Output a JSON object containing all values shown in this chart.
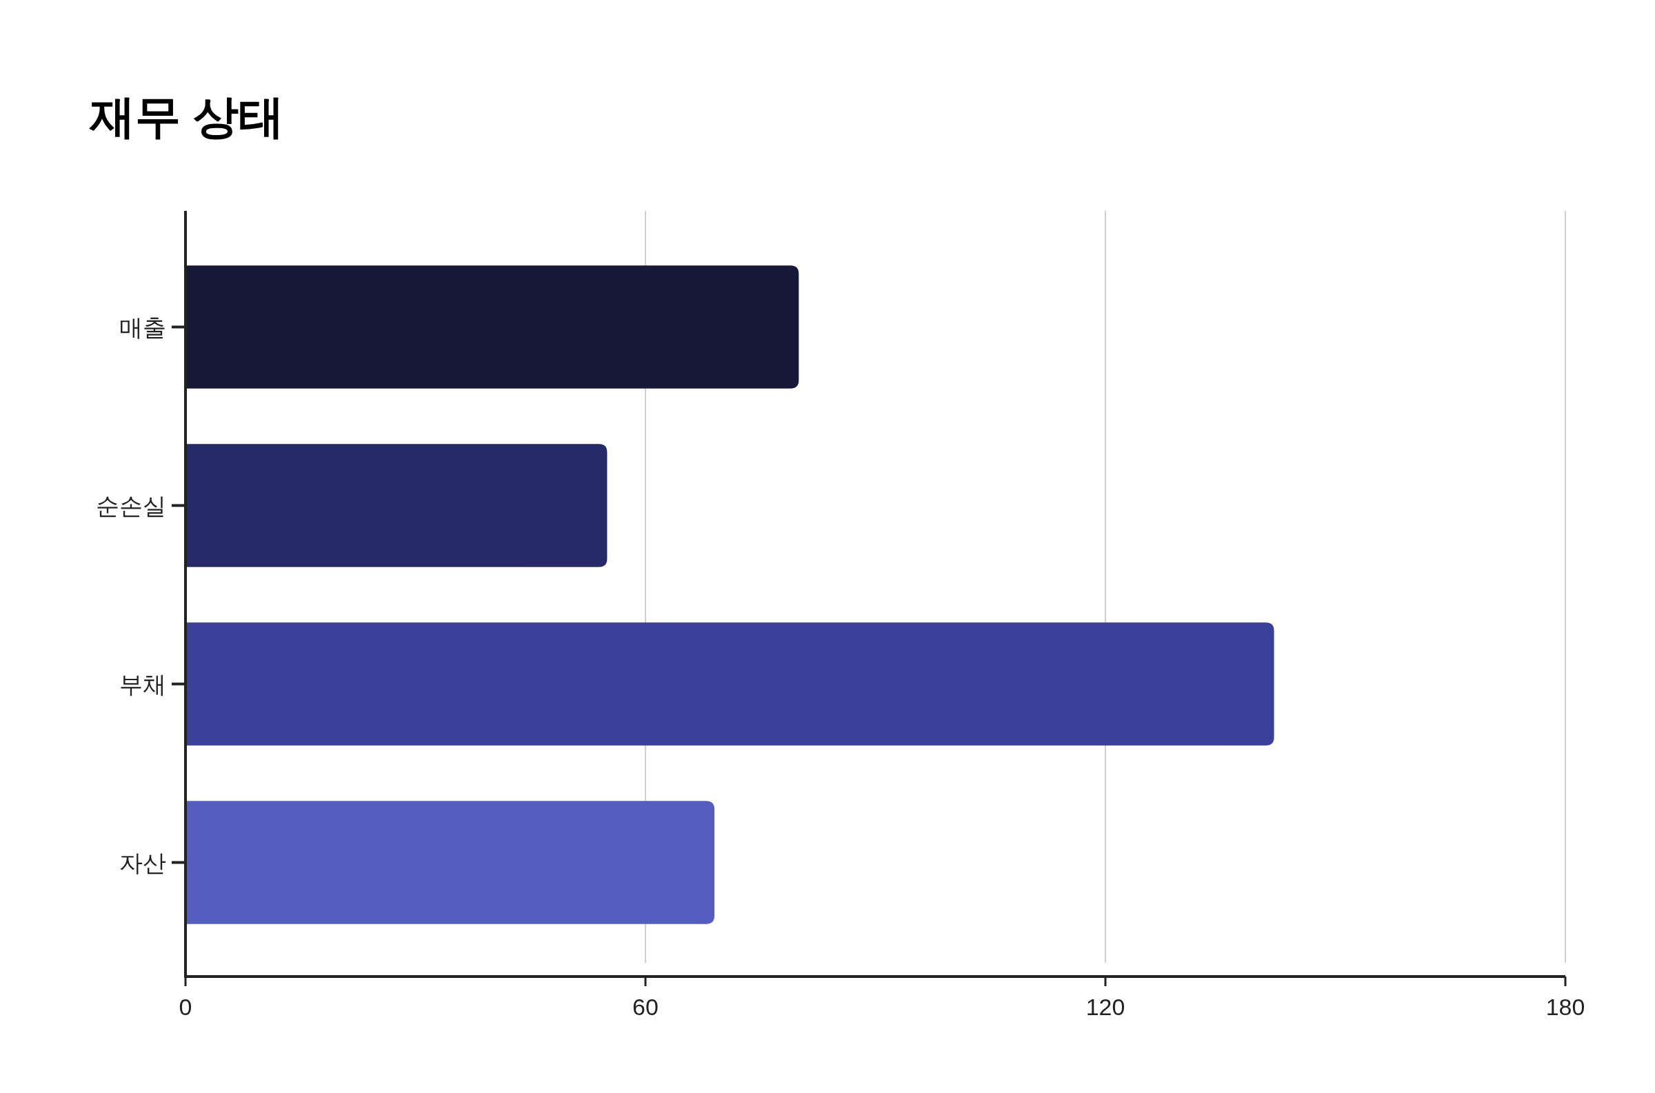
{
  "chart_data": {
    "type": "bar",
    "orientation": "horizontal",
    "title": "재무 상태",
    "categories": [
      "매출",
      "순손실",
      "부채",
      "자산"
    ],
    "values": [
      80,
      55,
      142,
      69
    ],
    "colors": [
      "#161938",
      "#262a68",
      "#3a3f9a",
      "#555ec0"
    ],
    "xlim": [
      0,
      180
    ],
    "xticks": [
      0,
      60,
      120,
      180
    ],
    "grid": "x"
  }
}
